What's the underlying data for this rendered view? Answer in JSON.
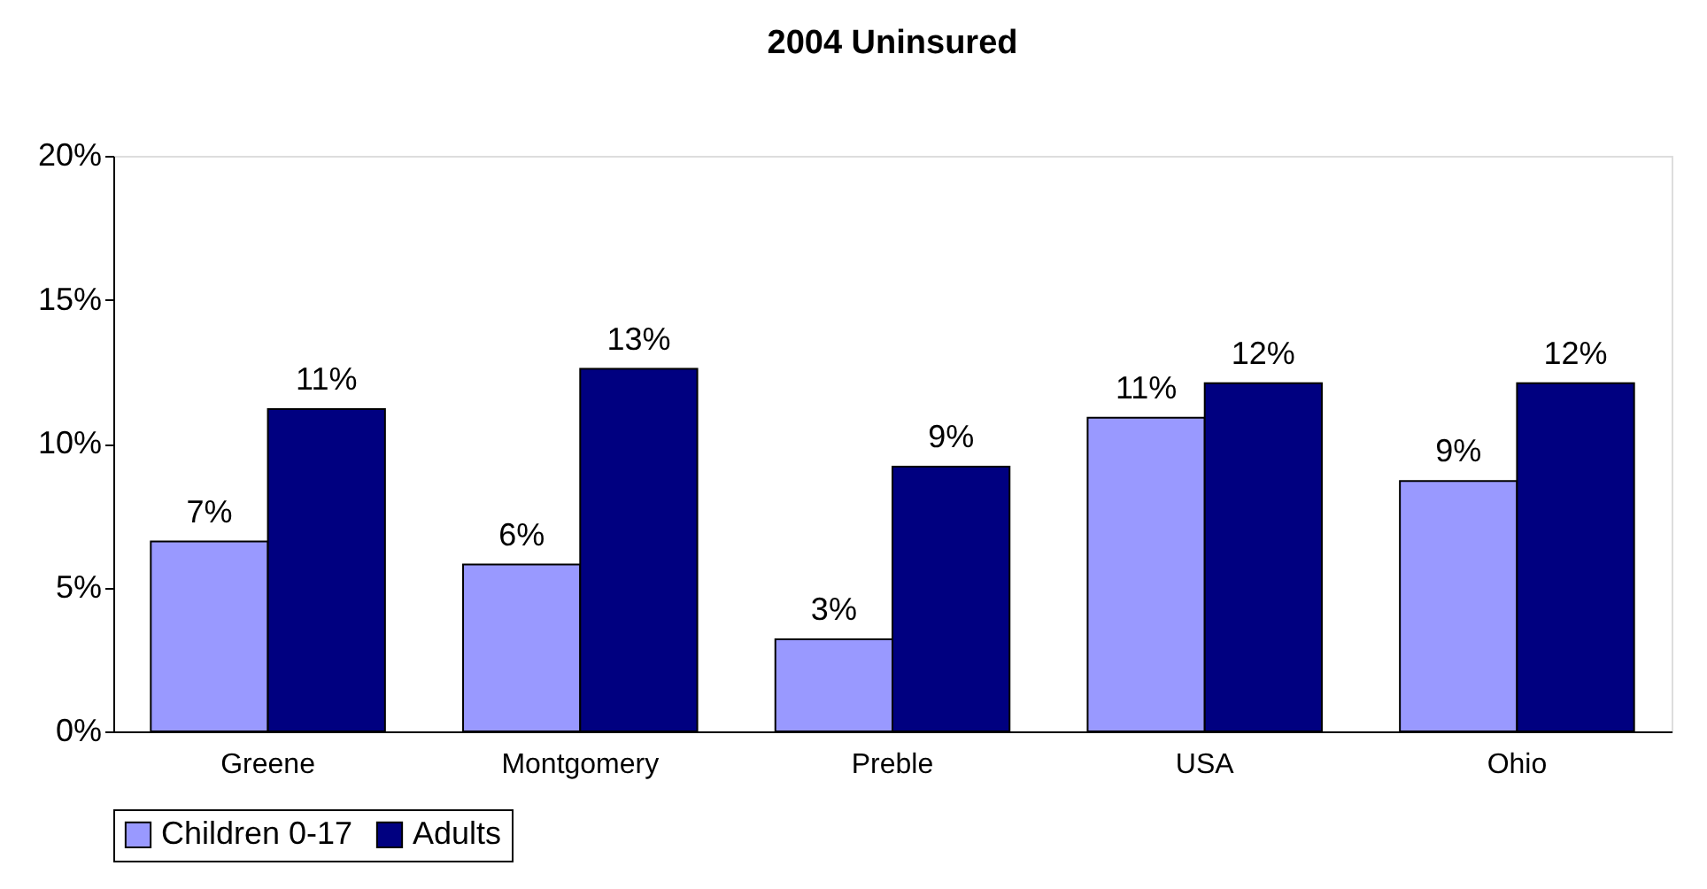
{
  "chart_data": {
    "type": "bar",
    "title": "2004 Uninsured",
    "categories": [
      "Greene",
      "Montgomery",
      "Preble",
      "USA",
      "Ohio"
    ],
    "series": [
      {
        "name": "Children 0-17",
        "color": "#9999ff",
        "values": [
          6.6,
          5.8,
          3.2,
          10.9,
          8.7
        ],
        "value_labels": [
          "7%",
          "6%",
          "3%",
          "11%",
          "9%"
        ]
      },
      {
        "name": "Adults",
        "color": "#000080",
        "values": [
          11.2,
          12.6,
          9.2,
          12.1,
          12.1
        ],
        "value_labels": [
          "11%",
          "13%",
          "9%",
          "12%",
          "12%"
        ]
      }
    ],
    "ylim": [
      0,
      20
    ],
    "yticks": [
      {
        "value": 0,
        "label": "0%"
      },
      {
        "value": 5,
        "label": "5%"
      },
      {
        "value": 10,
        "label": "10%"
      },
      {
        "value": 15,
        "label": "15%"
      },
      {
        "value": 20,
        "label": "20%"
      }
    ],
    "legend": "bottom"
  }
}
